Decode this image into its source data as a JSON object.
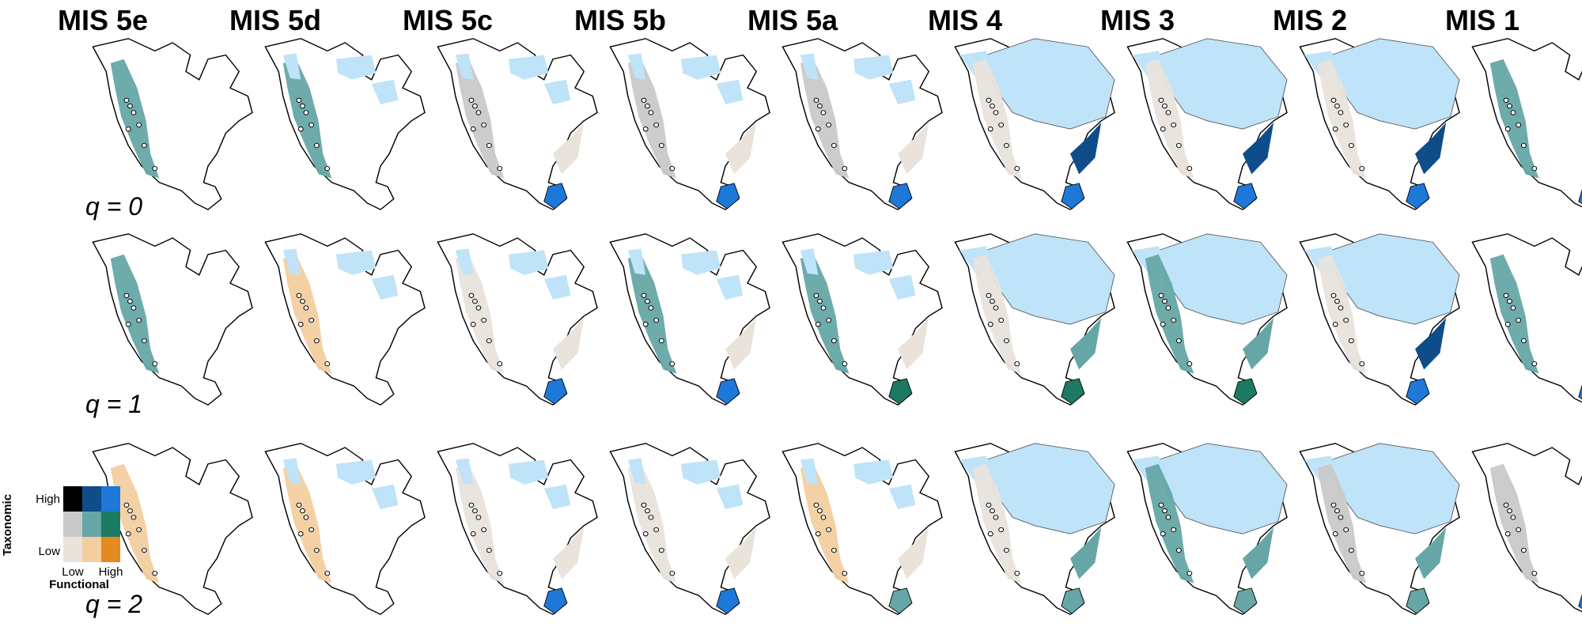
{
  "columns": [
    "MIS 5e",
    "MIS 5d",
    "MIS 5c",
    "MIS 5b",
    "MIS 5a",
    "MIS 4",
    "MIS 3",
    "MIS 2",
    "MIS 1"
  ],
  "rows": [
    "q = 0",
    "q = 1",
    "q = 2"
  ],
  "legend": {
    "y_axis_title": "Taxonomic",
    "x_axis_title": "Functional",
    "y_high": "High",
    "y_low": "Low",
    "x_low": "Low",
    "x_high": "High"
  }
}
